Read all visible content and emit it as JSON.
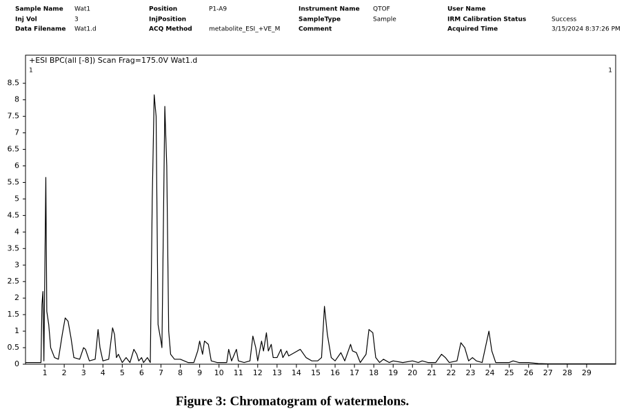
{
  "header": {
    "fields": [
      {
        "label": "Sample Name",
        "value": "Wat1"
      },
      {
        "label": "Position",
        "value": "P1-A9"
      },
      {
        "label": "Instrument Name",
        "value": "QTOF"
      },
      {
        "label": "User Name"
      },
      {
        "label": "Inj Vol",
        "value": "3"
      },
      {
        "label": "InjPosition"
      },
      {
        "label": "SampleType",
        "value": "Sample"
      },
      {
        "label": "IRM Calibration Status",
        "value": "Success"
      },
      {
        "label": "Data Filename",
        "value": "Wat1.d"
      },
      {
        "label": "ACQ Method",
        "value": "metabolite_ESI_+VE_M"
      },
      {
        "label": "Comment"
      },
      {
        "label": "Acquired Time",
        "value": "3/15/2024 8:37:26 PM"
      }
    ]
  },
  "chart_data": {
    "type": "line",
    "title": "+ESI BPC(all [-8]) Scan Frag=175.0V Wat1.d",
    "corner_labels": [
      "1",
      "1"
    ],
    "caption": "Figure 3: Chromatogram of watermelons.",
    "xlim": [
      0,
      30.5
    ],
    "ylim": [
      0,
      9.35
    ],
    "xticks": [
      1,
      2,
      3,
      4,
      5,
      6,
      7,
      8,
      9,
      10,
      11,
      12,
      13,
      14,
      15,
      16,
      17,
      18,
      19,
      20,
      21,
      22,
      23,
      24,
      25,
      26,
      27,
      28,
      29
    ],
    "yticks": [
      0,
      0.5,
      1,
      1.5,
      2,
      2.5,
      3,
      3.5,
      4,
      4.5,
      5,
      5.5,
      6,
      6.5,
      7,
      7.5,
      8,
      8.5
    ],
    "series": [
      {
        "color": "#000000",
        "x": [
          0,
          0.8,
          0.85,
          0.9,
          0.95,
          1.05,
          1.1,
          1.2,
          1.3,
          1.5,
          1.7,
          1.9,
          2.05,
          2.2,
          2.35,
          2.5,
          2.8,
          3.0,
          3.1,
          3.3,
          3.6,
          3.75,
          3.85,
          4.0,
          4.3,
          4.5,
          4.6,
          4.7,
          4.8,
          5.0,
          5.2,
          5.4,
          5.6,
          5.75,
          5.85,
          6.0,
          6.1,
          6.3,
          6.45,
          6.55,
          6.65,
          6.75,
          6.85,
          7.0,
          7.05,
          7.2,
          7.3,
          7.4,
          7.5,
          7.7,
          8.0,
          8.2,
          8.4,
          8.7,
          8.9,
          9.0,
          9.15,
          9.25,
          9.45,
          9.6,
          9.9,
          10.2,
          10.4,
          10.5,
          10.65,
          10.9,
          11.0,
          11.3,
          11.6,
          11.75,
          11.9,
          12.0,
          12.2,
          12.3,
          12.45,
          12.55,
          12.7,
          12.8,
          13.0,
          13.2,
          13.3,
          13.5,
          13.6,
          13.9,
          14.2,
          14.5,
          14.8,
          15.1,
          15.3,
          15.45,
          15.6,
          15.8,
          16.0,
          16.3,
          16.5,
          16.8,
          16.9,
          17.1,
          17.3,
          17.6,
          17.75,
          17.95,
          18.1,
          18.3,
          18.5,
          18.8,
          19.0,
          19.5,
          20.0,
          20.3,
          20.5,
          20.8,
          21.2,
          21.5,
          21.7,
          21.9,
          22.3,
          22.5,
          22.7,
          22.9,
          23.1,
          23.3,
          23.6,
          23.95,
          24.1,
          24.3,
          25.0,
          25.2,
          25.5,
          26.0,
          26.5,
          27,
          30.5
        ],
        "values": [
          0.05,
          0.05,
          1.8,
          2.2,
          0.1,
          5.65,
          1.6,
          1.2,
          0.5,
          0.2,
          0.15,
          0.9,
          1.4,
          1.3,
          0.8,
          0.2,
          0.15,
          0.5,
          0.45,
          0.1,
          0.15,
          1.05,
          0.5,
          0.1,
          0.15,
          1.1,
          0.9,
          0.2,
          0.3,
          0.05,
          0.2,
          0.05,
          0.45,
          0.3,
          0.1,
          0.2,
          0.05,
          0.2,
          0.05,
          5,
          8.15,
          7.5,
          1.2,
          0.7,
          0.5,
          7.8,
          6,
          1,
          0.3,
          0.15,
          0.15,
          0.1,
          0.05,
          0.05,
          0.4,
          0.7,
          0.3,
          0.7,
          0.6,
          0.1,
          0.05,
          0.05,
          0.05,
          0.45,
          0.1,
          0.45,
          0.1,
          0.05,
          0.1,
          0.85,
          0.5,
          0.1,
          0.7,
          0.4,
          0.95,
          0.4,
          0.6,
          0.2,
          0.2,
          0.45,
          0.2,
          0.4,
          0.25,
          0.35,
          0.45,
          0.2,
          0.1,
          0.1,
          0.2,
          1.75,
          0.9,
          0.2,
          0.1,
          0.35,
          0.1,
          0.6,
          0.4,
          0.35,
          0.05,
          0.3,
          1.05,
          0.95,
          0.2,
          0.05,
          0.15,
          0.05,
          0.1,
          0.05,
          0.1,
          0.05,
          0.1,
          0.05,
          0.05,
          0.3,
          0.2,
          0.05,
          0.1,
          0.65,
          0.5,
          0.1,
          0.2,
          0.1,
          0.05,
          1.0,
          0.4,
          0.05,
          0.05,
          0.1,
          0.05,
          0.05,
          0.02,
          0.01,
          0.01
        ]
      }
    ]
  }
}
